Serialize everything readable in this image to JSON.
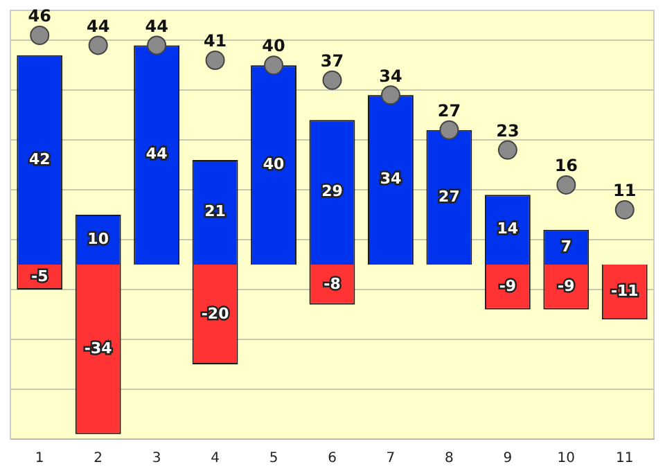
{
  "chart_data": {
    "type": "bar",
    "categories": [
      "1",
      "2",
      "3",
      "4",
      "5",
      "6",
      "7",
      "8",
      "9",
      "10",
      "11"
    ],
    "series": [
      {
        "color": "#0033ee",
        "values": [
          42,
          10,
          44,
          21,
          40,
          29,
          34,
          27,
          14,
          7,
          null
        ]
      },
      {
        "color": "#ff3333",
        "values": [
          -5,
          -34,
          null,
          -20,
          null,
          -8,
          null,
          null,
          -9,
          -9,
          -11
        ]
      },
      {
        "type": "scatter",
        "color": "#8a8a8a",
        "x": [
          "1",
          "2",
          "3",
          "4",
          "5",
          "6",
          "7",
          "8",
          "9",
          "10",
          "11"
        ],
        "values": [
          46,
          44,
          44,
          41,
          40,
          37,
          34,
          27,
          23,
          16,
          11
        ]
      }
    ],
    "stacked": true,
    "data_labels": true,
    "marker": "circle",
    "grid": "y",
    "legend": false,
    "tick_labels": "x",
    "ylim": [
      -35,
      51
    ],
    "yticks": [
      {
        "value": -25,
        "label": null
      },
      {
        "value": -15,
        "label": null
      },
      {
        "value": -5,
        "label": null
      },
      {
        "value": 5,
        "label": null
      },
      {
        "value": 15,
        "label": null
      },
      {
        "value": 25,
        "label": null
      },
      {
        "value": 35,
        "label": null
      },
      {
        "value": 45,
        "label": null
      }
    ]
  }
}
